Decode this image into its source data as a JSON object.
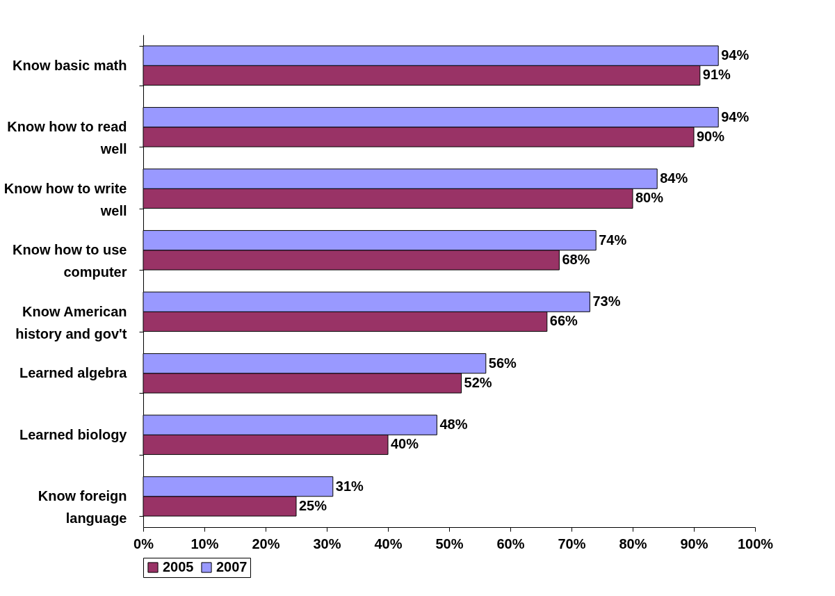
{
  "chart_data": {
    "type": "bar",
    "orientation": "horizontal",
    "categories": [
      "Know basic math",
      "Know how to read well",
      "Know how to write well",
      "Know how to use computer",
      "Know American history and gov't",
      "Learned algebra",
      "Learned biology",
      "Know foreign language"
    ],
    "series": [
      {
        "name": "2005",
        "color": "#993366",
        "values": [
          91,
          90,
          80,
          68,
          66,
          52,
          40,
          25
        ],
        "value_labels": [
          "91%",
          "90%",
          "80%",
          "68%",
          "66%",
          "52%",
          "40%",
          "25%"
        ]
      },
      {
        "name": "2007",
        "color": "#9999ff",
        "values": [
          94,
          94,
          84,
          74,
          73,
          56,
          48,
          31
        ],
        "value_labels": [
          "94%",
          "94%",
          "84%",
          "74%",
          "73%",
          "56%",
          "48%",
          "31%"
        ]
      }
    ],
    "xlim": [
      0,
      100
    ],
    "xticks": [
      {
        "value": 0,
        "label": "0%"
      },
      {
        "value": 10,
        "label": "10%"
      },
      {
        "value": 20,
        "label": "20%"
      },
      {
        "value": 30,
        "label": "30%"
      },
      {
        "value": 40,
        "label": "40%"
      },
      {
        "value": 50,
        "label": "50%"
      },
      {
        "value": 60,
        "label": "60%"
      },
      {
        "value": 70,
        "label": "70%"
      },
      {
        "value": 80,
        "label": "80%"
      },
      {
        "value": 90,
        "label": "90%"
      },
      {
        "value": 100,
        "label": "100%"
      }
    ],
    "legend": "bottom"
  }
}
